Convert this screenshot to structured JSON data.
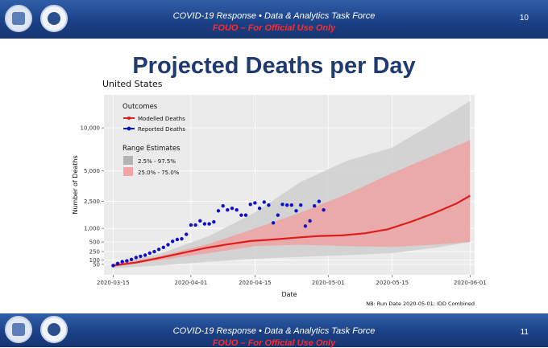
{
  "header": {
    "title": "COVID-19 Response   •   Data & Analytics Task Force",
    "fouo": "FOUO – For Official Use Only",
    "page": "10"
  },
  "footer": {
    "title": "COVID-19 Response   •   Data & Analytics Task Force",
    "fouo": "FOUO – For Official Use Only",
    "page": "11"
  },
  "slide_title": "Projected Deaths per Day",
  "chart_data": {
    "type": "line",
    "title": "United States",
    "xlabel": "Date",
    "ylabel": "Number of Deaths",
    "y_scale": "sqrt",
    "xlim": [
      "2020-03-13",
      "2020-06-02"
    ],
    "ylim": [
      0,
      15000
    ],
    "x_ticks": [
      "2020-03-15",
      "2020-04-01",
      "2020-04-15",
      "2020-05-01",
      "2020-05-15",
      "2020-06-01"
    ],
    "y_ticks": [
      50,
      100,
      250,
      500,
      1000,
      2500,
      5000,
      10000
    ],
    "y_tick_labels": [
      "50",
      "100",
      "250",
      "500",
      "1,000",
      "2,500",
      "5,000",
      "10,000"
    ],
    "grid": true,
    "legend": {
      "placement": "top-left",
      "outcomes_title": "Outcomes",
      "modelled_label": "Modelled Deaths",
      "reported_label": "Reported Deaths",
      "range_title": "Range Estimates",
      "outer_label": "2.5% - 97.5%",
      "inner_label": "25.0% - 75.0%"
    },
    "note": "NB: Run Date 2020-05-01; IDD Combined",
    "colors": {
      "modelled": "#dd1c1c",
      "reported": "#1010c8",
      "outer_band": "#cfcfcf",
      "inner_band": "#f0a0a0",
      "panel": "#ebebeb"
    },
    "series": [
      {
        "name": "Modelled Deaths",
        "kind": "line",
        "x": [
          "2020-03-15",
          "2020-03-20",
          "2020-03-25",
          "2020-03-30",
          "2020-04-04",
          "2020-04-09",
          "2020-04-14",
          "2020-04-19",
          "2020-04-24",
          "2020-04-29",
          "2020-05-04",
          "2020-05-09",
          "2020-05-14",
          "2020-05-19",
          "2020-05-24",
          "2020-05-29",
          "2020-06-01"
        ],
        "y": [
          40,
          70,
          130,
          220,
          330,
          430,
          530,
          580,
          640,
          700,
          720,
          800,
          960,
          1300,
          1750,
          2350,
          2900
        ]
      },
      {
        "name": "2.5% - 97.5%",
        "kind": "band",
        "x": [
          "2020-03-15",
          "2020-03-25",
          "2020-04-05",
          "2020-04-15",
          "2020-04-25",
          "2020-05-05",
          "2020-05-15",
          "2020-05-25",
          "2020-06-01"
        ],
        "lower": [
          20,
          40,
          80,
          120,
          150,
          180,
          220,
          350,
          500
        ],
        "upper": [
          60,
          200,
          700,
          1800,
          4000,
          6000,
          7500,
          11000,
          14000
        ]
      },
      {
        "name": "25.0% - 75.0%",
        "kind": "band",
        "x": [
          "2020-03-15",
          "2020-03-25",
          "2020-04-05",
          "2020-04-15",
          "2020-04-25",
          "2020-05-05",
          "2020-05-15",
          "2020-05-25",
          "2020-06-01"
        ],
        "lower": [
          30,
          100,
          220,
          380,
          420,
          380,
          360,
          430,
          500
        ],
        "upper": [
          50,
          160,
          450,
          1000,
          1800,
          3000,
          4800,
          6800,
          8400
        ]
      },
      {
        "name": "Reported Deaths",
        "kind": "points",
        "x": [
          "2020-03-15",
          "2020-03-16",
          "2020-03-17",
          "2020-03-18",
          "2020-03-19",
          "2020-03-20",
          "2020-03-21",
          "2020-03-22",
          "2020-03-23",
          "2020-03-24",
          "2020-03-25",
          "2020-03-26",
          "2020-03-27",
          "2020-03-28",
          "2020-03-29",
          "2020-03-30",
          "2020-03-31",
          "2020-04-01",
          "2020-04-02",
          "2020-04-03",
          "2020-04-04",
          "2020-04-05",
          "2020-04-06",
          "2020-04-07",
          "2020-04-08",
          "2020-04-09",
          "2020-04-10",
          "2020-04-11",
          "2020-04-12",
          "2020-04-13",
          "2020-04-14",
          "2020-04-15",
          "2020-04-16",
          "2020-04-17",
          "2020-04-18",
          "2020-04-19",
          "2020-04-20",
          "2020-04-21",
          "2020-04-22",
          "2020-04-23",
          "2020-04-24",
          "2020-04-25",
          "2020-04-26",
          "2020-04-27",
          "2020-04-28",
          "2020-04-29",
          "2020-04-30"
        ],
        "y": [
          40,
          60,
          80,
          90,
          110,
          140,
          160,
          180,
          220,
          250,
          300,
          350,
          420,
          520,
          580,
          600,
          760,
          1150,
          1150,
          1350,
          1200,
          1200,
          1300,
          1900,
          2200,
          1950,
          2050,
          1950,
          1650,
          1650,
          2300,
          2400,
          2050,
          2450,
          2250,
          1250,
          1650,
          2300,
          2250,
          2250,
          1900,
          2250,
          1100,
          1350,
          2200,
          2500,
          1950
        ]
      }
    ]
  }
}
